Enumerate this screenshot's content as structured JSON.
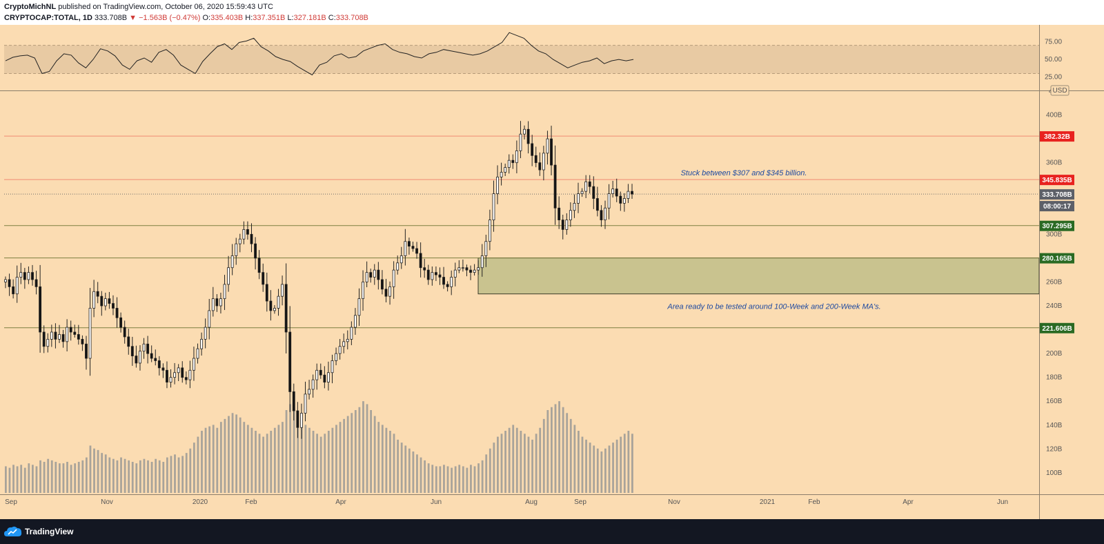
{
  "header": {
    "author": "CryptoMichNL",
    "published_text": "published on TradingView.com, October 06, 2020 15:59:43 UTC",
    "symbol": "CRYPTOCAP:TOTAL, 1D",
    "last": "333.708B",
    "change": "▼ −1.563B (−0.47%)",
    "open_label": "O:",
    "open": "335.403B",
    "high_label": "H:",
    "high": "337.351B",
    "low_label": "L:",
    "low": "327.181B",
    "close_label": "C:",
    "close": "333.708B"
  },
  "footer": {
    "brand": "TradingView"
  },
  "colors": {
    "background": "#fbdcb2",
    "rsi_band": "#e8caa3",
    "resistance_line": "#f08a73",
    "support_line": "#7d7f3f",
    "zone_fill": "#c9c38f",
    "badge_red": "#e8221f",
    "badge_green": "#2a6a23",
    "badge_gray": "#5d6068",
    "annotation": "#1f4aa0"
  },
  "chart_data": [
    {
      "type": "line",
      "name": "RSI panel",
      "ylim": [
        10,
        95
      ],
      "yticks": [
        "75.00",
        "50.00",
        "25.00"
      ],
      "ytick_values": [
        75,
        50,
        25
      ],
      "band": [
        30,
        70
      ],
      "values": [
        48,
        53,
        55,
        56,
        52,
        30,
        33,
        48,
        58,
        56,
        45,
        38,
        50,
        65,
        62,
        55,
        42,
        36,
        48,
        52,
        46,
        60,
        64,
        56,
        42,
        36,
        30,
        47,
        58,
        68,
        72,
        64,
        74,
        76,
        80,
        68,
        62,
        54,
        50,
        47,
        40,
        34,
        28,
        42,
        46,
        55,
        58,
        52,
        54,
        62,
        66,
        70,
        72,
        64,
        60,
        58,
        54,
        52,
        58,
        60,
        64,
        62,
        60,
        58,
        56,
        58,
        62,
        68,
        74,
        88,
        84,
        80,
        70,
        62,
        58,
        50,
        44,
        38,
        42,
        46,
        48,
        52,
        44,
        48,
        50,
        48,
        50
      ]
    },
    {
      "type": "candlestick",
      "name": "CRYPTOCAP:TOTAL, 1D",
      "currency": "USD",
      "x_labels": [
        "Sep",
        "Nov",
        "2020",
        "Feb",
        "Apr",
        "Jun",
        "Aug",
        "Sep",
        "Nov",
        "2021",
        "Feb",
        "Apr",
        "Jun"
      ],
      "yticks": [
        "400B",
        "360B",
        "300B",
        "260B",
        "240B",
        "200B",
        "180B",
        "160B",
        "140B",
        "120B",
        "100B"
      ],
      "ytick_values": [
        400,
        360,
        300,
        260,
        240,
        200,
        180,
        160,
        140,
        120,
        100
      ],
      "top_tick_partial": "4",
      "ylim": [
        82,
        420
      ],
      "close_path": [
        262,
        256,
        250,
        264,
        268,
        262,
        268,
        262,
        256,
        218,
        206,
        212,
        218,
        212,
        216,
        210,
        222,
        218,
        216,
        212,
        208,
        196,
        238,
        252,
        248,
        240,
        246,
        242,
        238,
        230,
        222,
        214,
        206,
        198,
        192,
        202,
        208,
        200,
        196,
        194,
        188,
        186,
        176,
        180,
        184,
        188,
        180,
        178,
        186,
        196,
        204,
        212,
        222,
        236,
        246,
        240,
        246,
        258,
        272,
        282,
        292,
        296,
        304,
        300,
        292,
        280,
        268,
        258,
        244,
        236,
        238,
        248,
        258,
        218,
        168,
        152,
        138,
        150,
        166,
        170,
        178,
        186,
        182,
        176,
        184,
        194,
        200,
        206,
        210,
        212,
        222,
        232,
        246,
        260,
        268,
        264,
        270,
        262,
        254,
        248,
        256,
        270,
        276,
        282,
        294,
        290,
        288,
        284,
        272,
        270,
        262,
        268,
        266,
        264,
        258,
        256,
        264,
        270,
        272,
        272,
        270,
        268,
        270,
        272,
        282,
        294,
        312,
        334,
        348,
        352,
        356,
        362,
        360,
        370,
        384,
        388,
        376,
        366,
        360,
        354,
        368,
        380,
        358,
        322,
        312,
        304,
        312,
        320,
        326,
        334,
        336,
        344,
        340,
        330,
        320,
        312,
        322,
        334,
        338,
        332,
        326,
        330,
        336,
        333.708
      ],
      "last_price": 333.708,
      "volume": [
        18,
        17,
        19,
        18,
        19,
        17,
        20,
        19,
        18,
        22,
        21,
        23,
        22,
        21,
        20,
        20,
        21,
        19,
        20,
        21,
        22,
        24,
        32,
        30,
        29,
        27,
        26,
        24,
        23,
        22,
        24,
        23,
        22,
        21,
        20,
        22,
        23,
        22,
        21,
        23,
        22,
        21,
        24,
        25,
        26,
        24,
        25,
        27,
        30,
        34,
        38,
        42,
        44,
        45,
        46,
        44,
        48,
        50,
        52,
        54,
        53,
        51,
        48,
        46,
        44,
        42,
        40,
        38,
        40,
        42,
        44,
        46,
        48,
        56,
        60,
        58,
        55,
        50,
        46,
        44,
        42,
        40,
        38,
        40,
        42,
        44,
        46,
        48,
        50,
        52,
        54,
        56,
        58,
        62,
        60,
        56,
        52,
        48,
        46,
        44,
        42,
        40,
        36,
        34,
        32,
        30,
        28,
        26,
        24,
        22,
        20,
        19,
        18,
        18,
        19,
        18,
        17,
        18,
        19,
        18,
        17,
        19,
        18,
        20,
        22,
        26,
        30,
        34,
        38,
        40,
        42,
        44,
        46,
        44,
        42,
        40,
        38,
        36,
        40,
        44,
        50,
        56,
        58,
        60,
        62,
        58,
        54,
        50,
        46,
        42,
        38,
        36,
        34,
        32,
        30,
        28,
        30,
        32,
        34,
        36,
        38,
        40,
        42,
        40
      ]
    }
  ],
  "levels": {
    "resistance_high": {
      "value": 382.32,
      "label": "382.32B"
    },
    "resistance_low": {
      "value": 345.835,
      "label": "345.835B"
    },
    "support_high": {
      "value": 307.295,
      "label": "307.295B"
    },
    "zone_top": {
      "value": 280.165,
      "label": "280.165B"
    },
    "zone_bottom": {
      "value": 250
    },
    "support_low": {
      "value": 221.606,
      "label": "221.606B"
    },
    "current_price_label": "333.708B",
    "countdown": "08:00:17"
  },
  "annotations": {
    "stuck": "Stuck between $307 and $345 billion.",
    "area": "Area ready to be tested around 100-Week and 200-Week MA's."
  }
}
